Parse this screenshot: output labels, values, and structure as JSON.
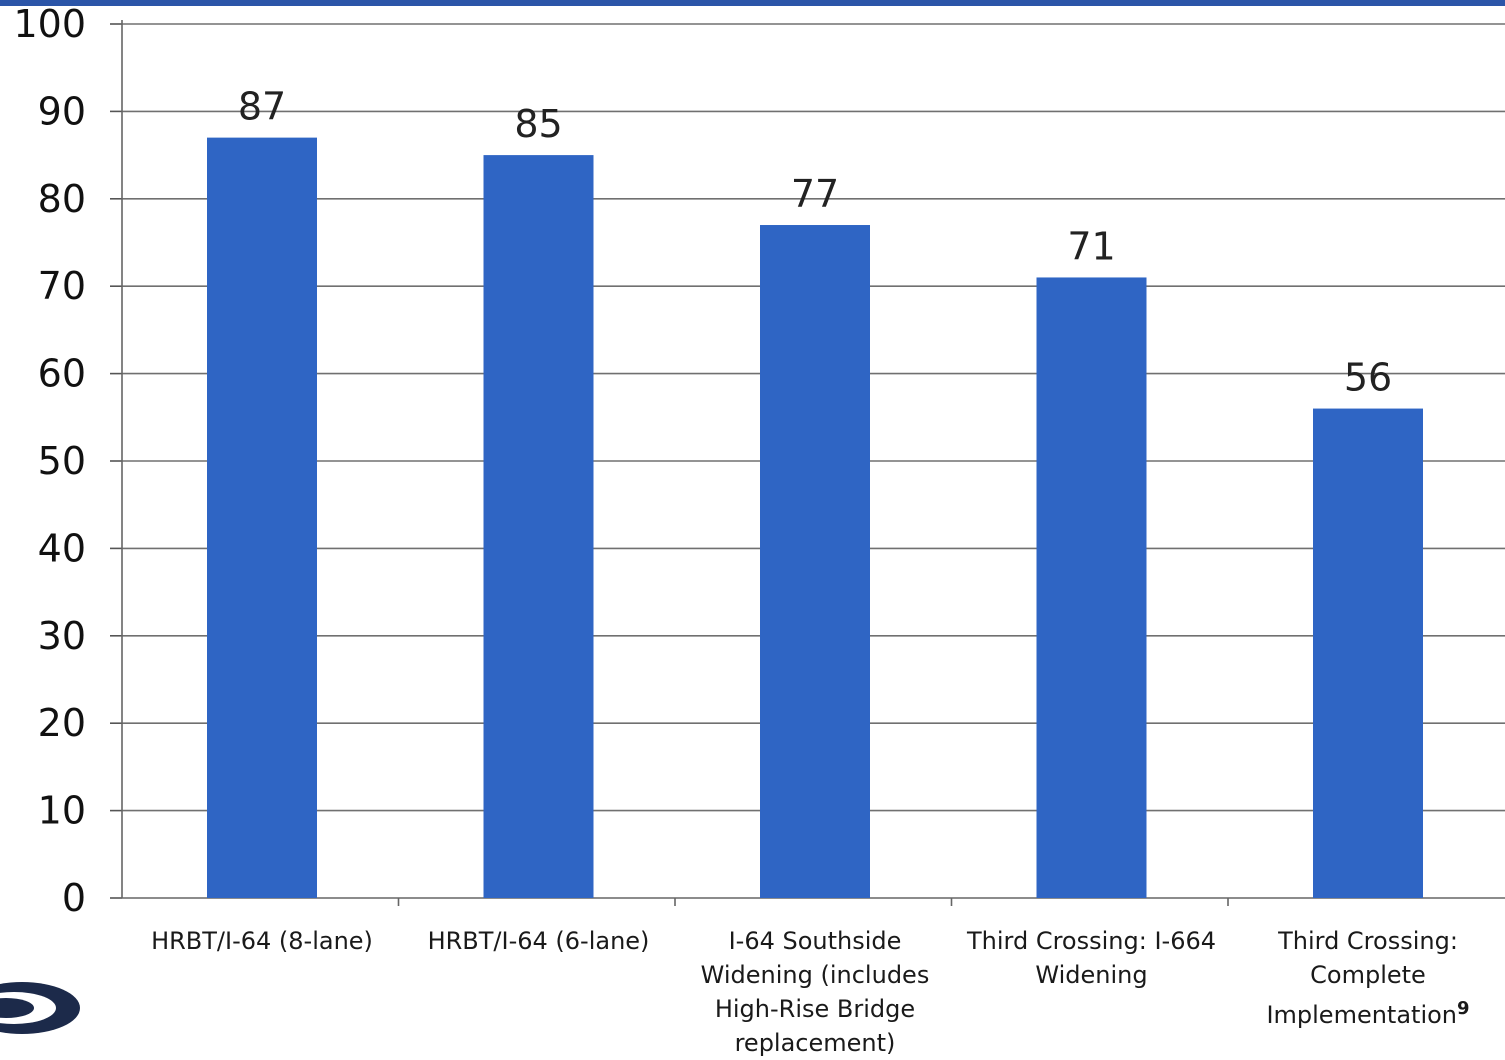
{
  "chart_data": {
    "type": "bar",
    "title": "",
    "xlabel": "",
    "ylabel": "",
    "ylim": [
      0,
      100
    ],
    "yticks": [
      "0",
      "10",
      "20",
      "30",
      "40",
      "50",
      "60",
      "70",
      "80",
      "90",
      "100"
    ],
    "grid": true,
    "bar_color": "#2f65c4",
    "categories": [
      "HRBT/I-64 (8-lane)",
      "HRBT/I-64 (6-lane)",
      "I-64 Southside Widening (includes High-Rise Bridge replacement)",
      "Third Crossing: I-664 Widening",
      "Third Crossing: Complete Implementation"
    ],
    "footnote_marker": "9",
    "values": [
      87,
      85,
      77,
      71,
      56
    ]
  }
}
